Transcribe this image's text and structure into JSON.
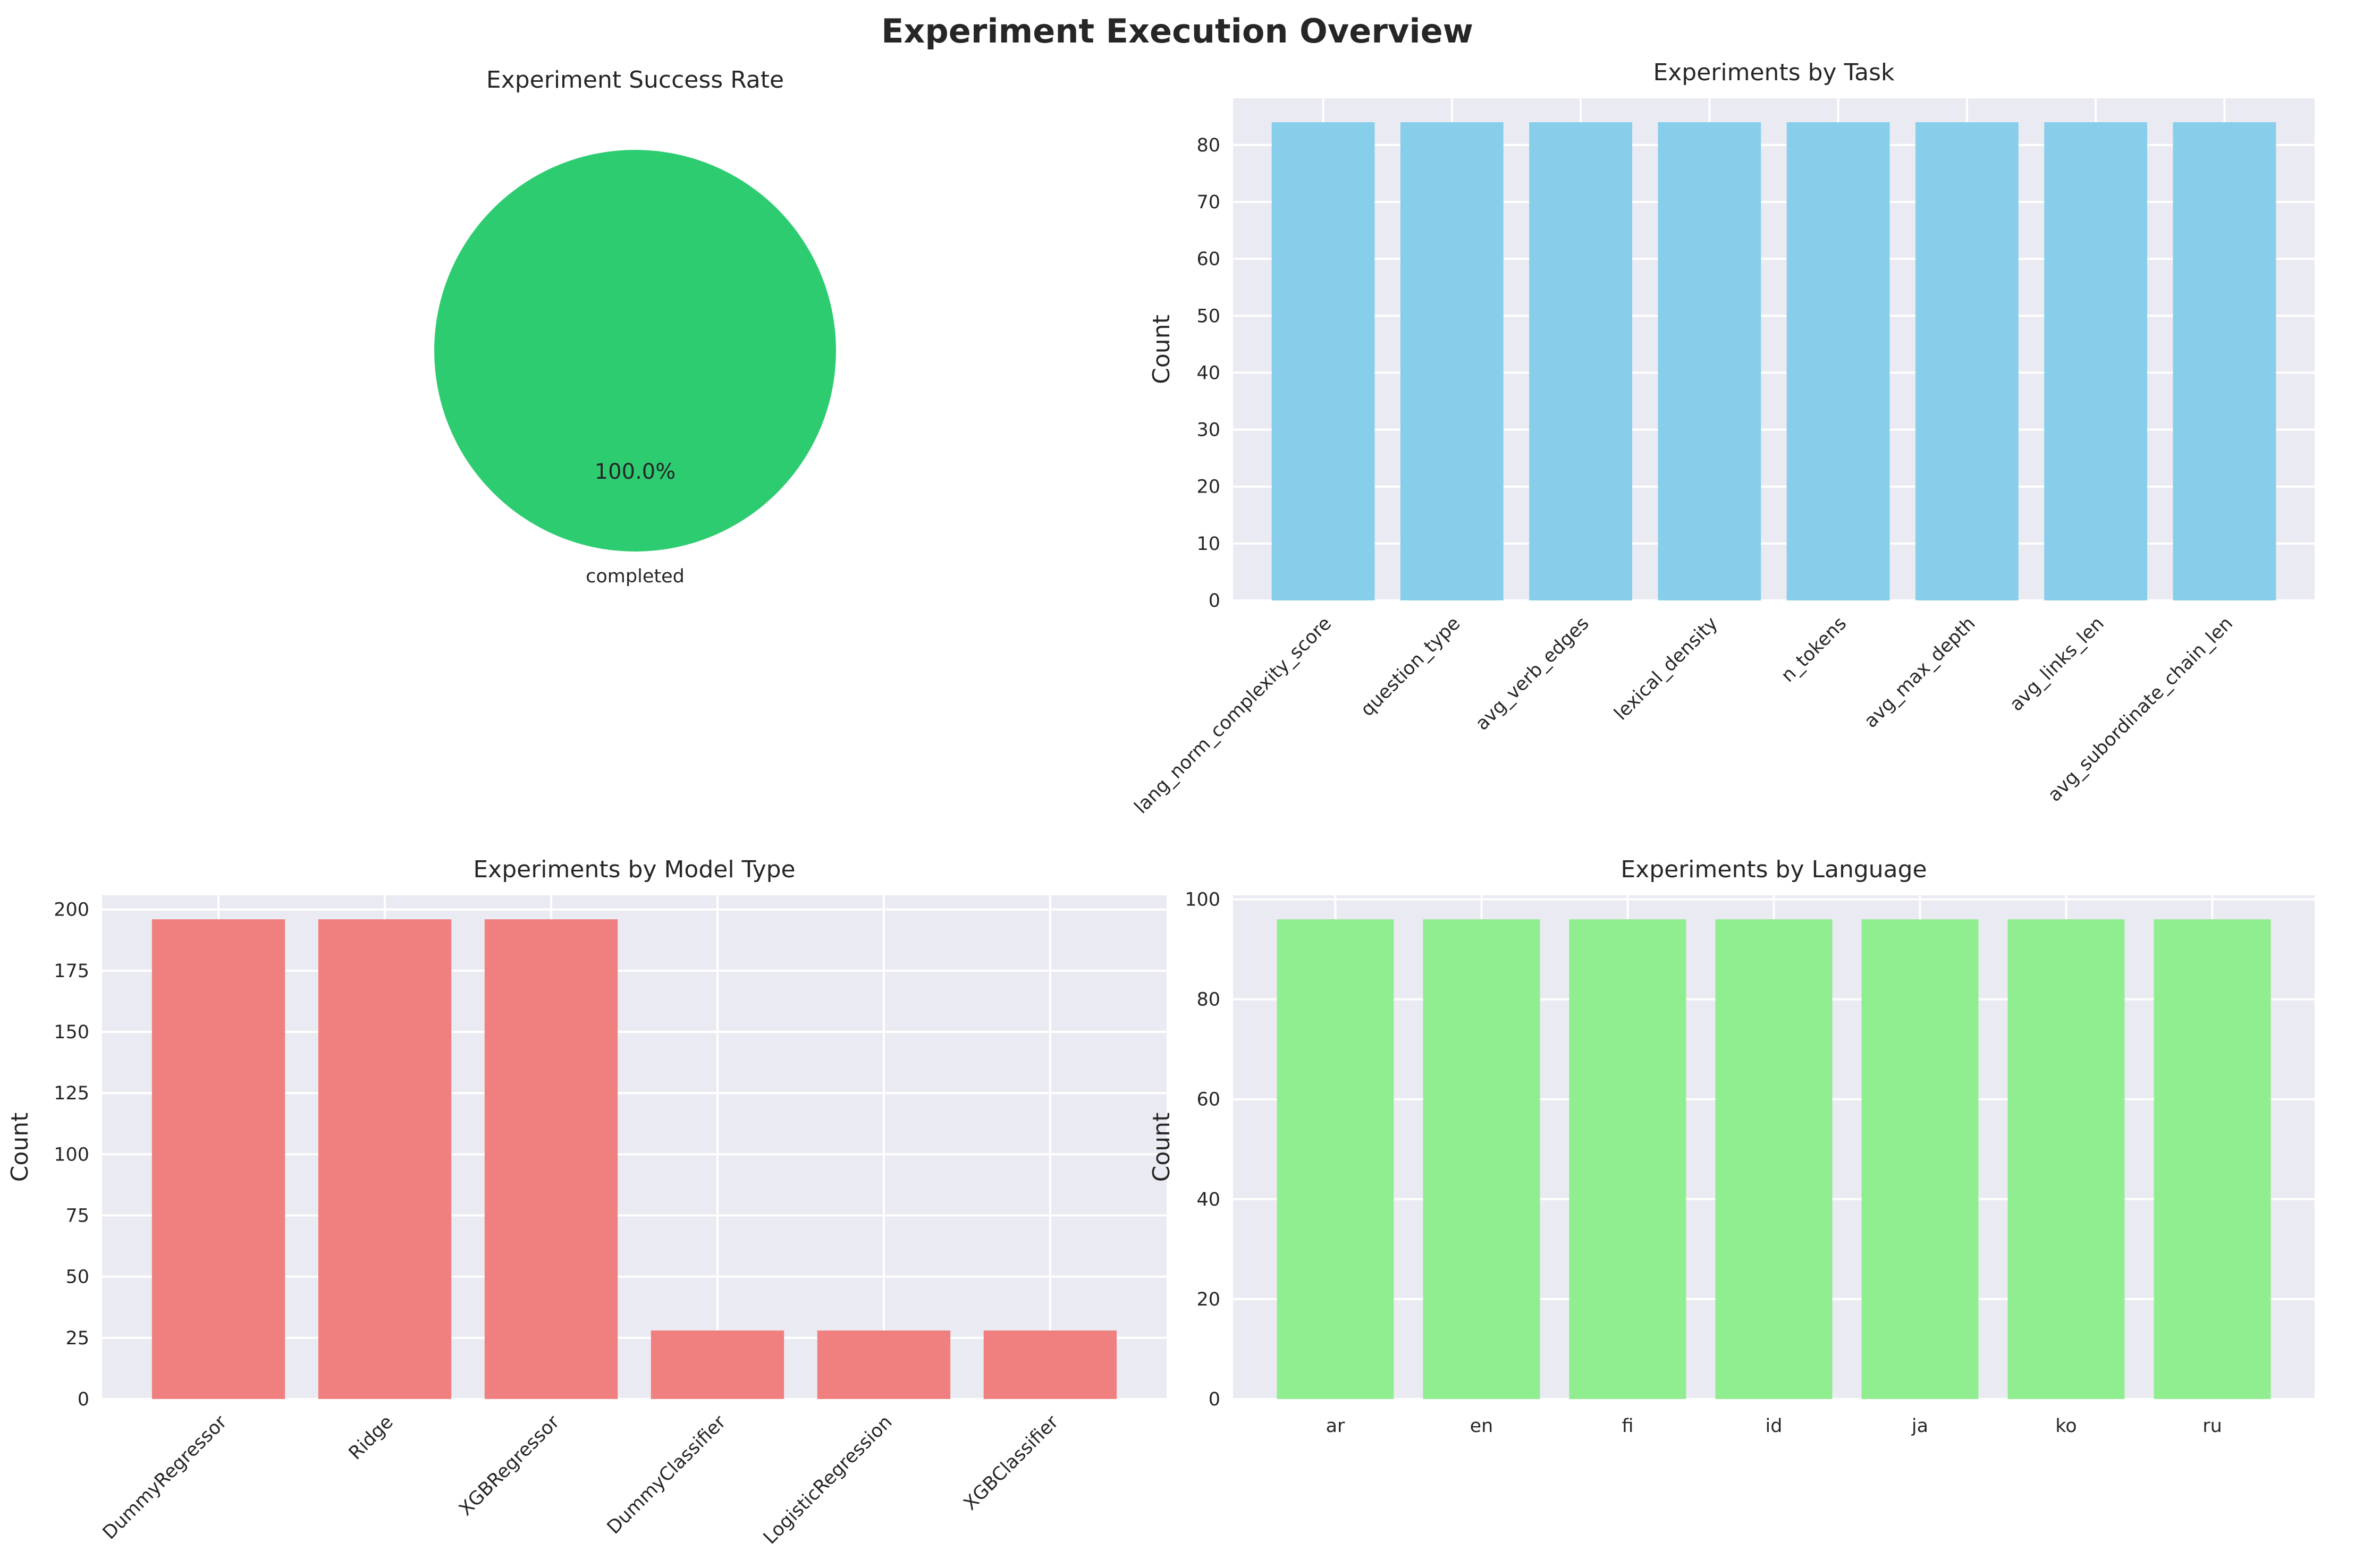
{
  "figure": {
    "title": "Experiment Execution Overview"
  },
  "chart_data": [
    {
      "type": "pie",
      "title": "Experiment Success Rate",
      "labels": [
        "completed"
      ],
      "values": [
        100
      ],
      "pct_labels": [
        "100.0%"
      ],
      "colors": [
        "#2ecc71"
      ]
    },
    {
      "type": "bar",
      "title": "Experiments by Task",
      "xlabel": "",
      "ylabel": "Count",
      "categories": [
        "lang_norm_complexity_score",
        "question_type",
        "avg_verb_edges",
        "lexical_density",
        "n_tokens",
        "avg_max_depth",
        "avg_links_len",
        "avg_subordinate_chain_len"
      ],
      "values": [
        84,
        84,
        84,
        84,
        84,
        84,
        84,
        84
      ],
      "ylim": [
        0,
        88.2
      ],
      "yticks": [
        0,
        10,
        20,
        30,
        40,
        50,
        60,
        70,
        80
      ],
      "color": "#87ceeb",
      "grid": true,
      "xtick_rotation": 45
    },
    {
      "type": "bar",
      "title": "Experiments by Model Type",
      "xlabel": "",
      "ylabel": "Count",
      "categories": [
        "DummyRegressor",
        "Ridge",
        "XGBRegressor",
        "DummyClassifier",
        "LogisticRegression",
        "XGBClassifier"
      ],
      "values": [
        196,
        196,
        196,
        28,
        28,
        28
      ],
      "ylim": [
        0,
        205.8
      ],
      "yticks": [
        0,
        25,
        50,
        75,
        100,
        125,
        150,
        175,
        200
      ],
      "color": "#f08080",
      "grid": true,
      "xtick_rotation": 45
    },
    {
      "type": "bar",
      "title": "Experiments by Language",
      "xlabel": "",
      "ylabel": "Count",
      "categories": [
        "ar",
        "en",
        "fi",
        "id",
        "ja",
        "ko",
        "ru"
      ],
      "values": [
        96,
        96,
        96,
        96,
        96,
        96,
        96
      ],
      "ylim": [
        0,
        100.8
      ],
      "yticks": [
        0,
        20,
        40,
        60,
        80,
        100
      ],
      "color": "#90ee90",
      "grid": true,
      "xtick_rotation": 0
    }
  ]
}
